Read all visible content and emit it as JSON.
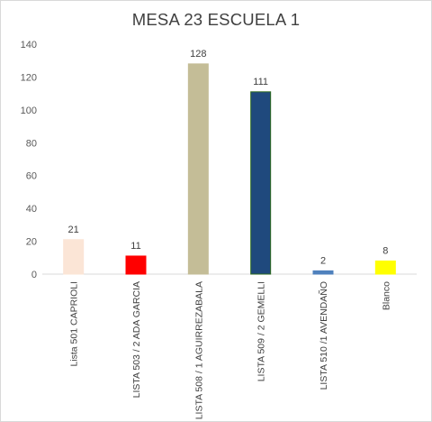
{
  "chart_data": {
    "type": "bar",
    "title": "MESA 23 ESCUELA 1",
    "xlabel": "",
    "ylabel": "",
    "categories": [
      "Lista 501  CAPRIOLI",
      "LISTA 503  / 2  ADA GARCIA",
      "LISTA 508 / 1 AGUIRREZABALA",
      "LISTA 509 / 2 GEMELLI",
      "LISTA 510 /1 AVENDAÑO",
      "Blanco"
    ],
    "values": [
      21,
      11,
      128,
      111,
      2,
      8
    ],
    "colors": [
      "#fbe5d6",
      "#ff0000",
      "#c4bd97",
      "#1f497d",
      "#4f81bd",
      "#ffff00"
    ],
    "outline_colors": [
      "#fbe5d6",
      "#ff0000",
      "#c4bd97",
      "#2e6b1f",
      "#4f81bd",
      "#ffff00"
    ],
    "ylim": [
      0,
      140
    ],
    "yticks": [
      0,
      20,
      40,
      60,
      80,
      100,
      120,
      140
    ],
    "grid": false,
    "legend": "none"
  }
}
